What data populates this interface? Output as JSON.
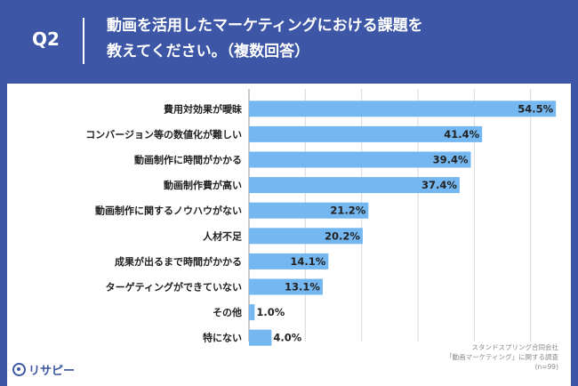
{
  "header": {
    "question_label": "Q2",
    "title_line1": "動画を活用したマーケティングにおける課題を",
    "title_line2": "教えてください。（複数回答）"
  },
  "chart_data": {
    "type": "bar",
    "orientation": "horizontal",
    "categories": [
      "費用対効果が曖昧",
      "コンバージョン等の数値化が難しい",
      "動画制作に時間がかかる",
      "動画制作費が高い",
      "動画制作に関するノウハウがない",
      "人材不足",
      "成果が出るまで時間がかかる",
      "ターゲティングができていない",
      "その他",
      "特にない"
    ],
    "values": [
      54.5,
      41.4,
      39.4,
      37.4,
      21.2,
      20.2,
      14.1,
      13.1,
      1.0,
      4.0
    ],
    "value_labels": [
      "54.5%",
      "41.4%",
      "39.4%",
      "37.4%",
      "21.2%",
      "20.2%",
      "14.1%",
      "13.1%",
      "1.0%",
      "4.0%"
    ],
    "xlim": [
      0,
      60
    ],
    "grid": true,
    "bar_color": "#75b7f0"
  },
  "footnote": {
    "line1": "スタンドスプリング合同会社",
    "line2": "「動画マーケティング」に関する調査",
    "line3": "(n=99)"
  },
  "brand": {
    "name": "リサピー",
    "color": "#3d56a5"
  }
}
